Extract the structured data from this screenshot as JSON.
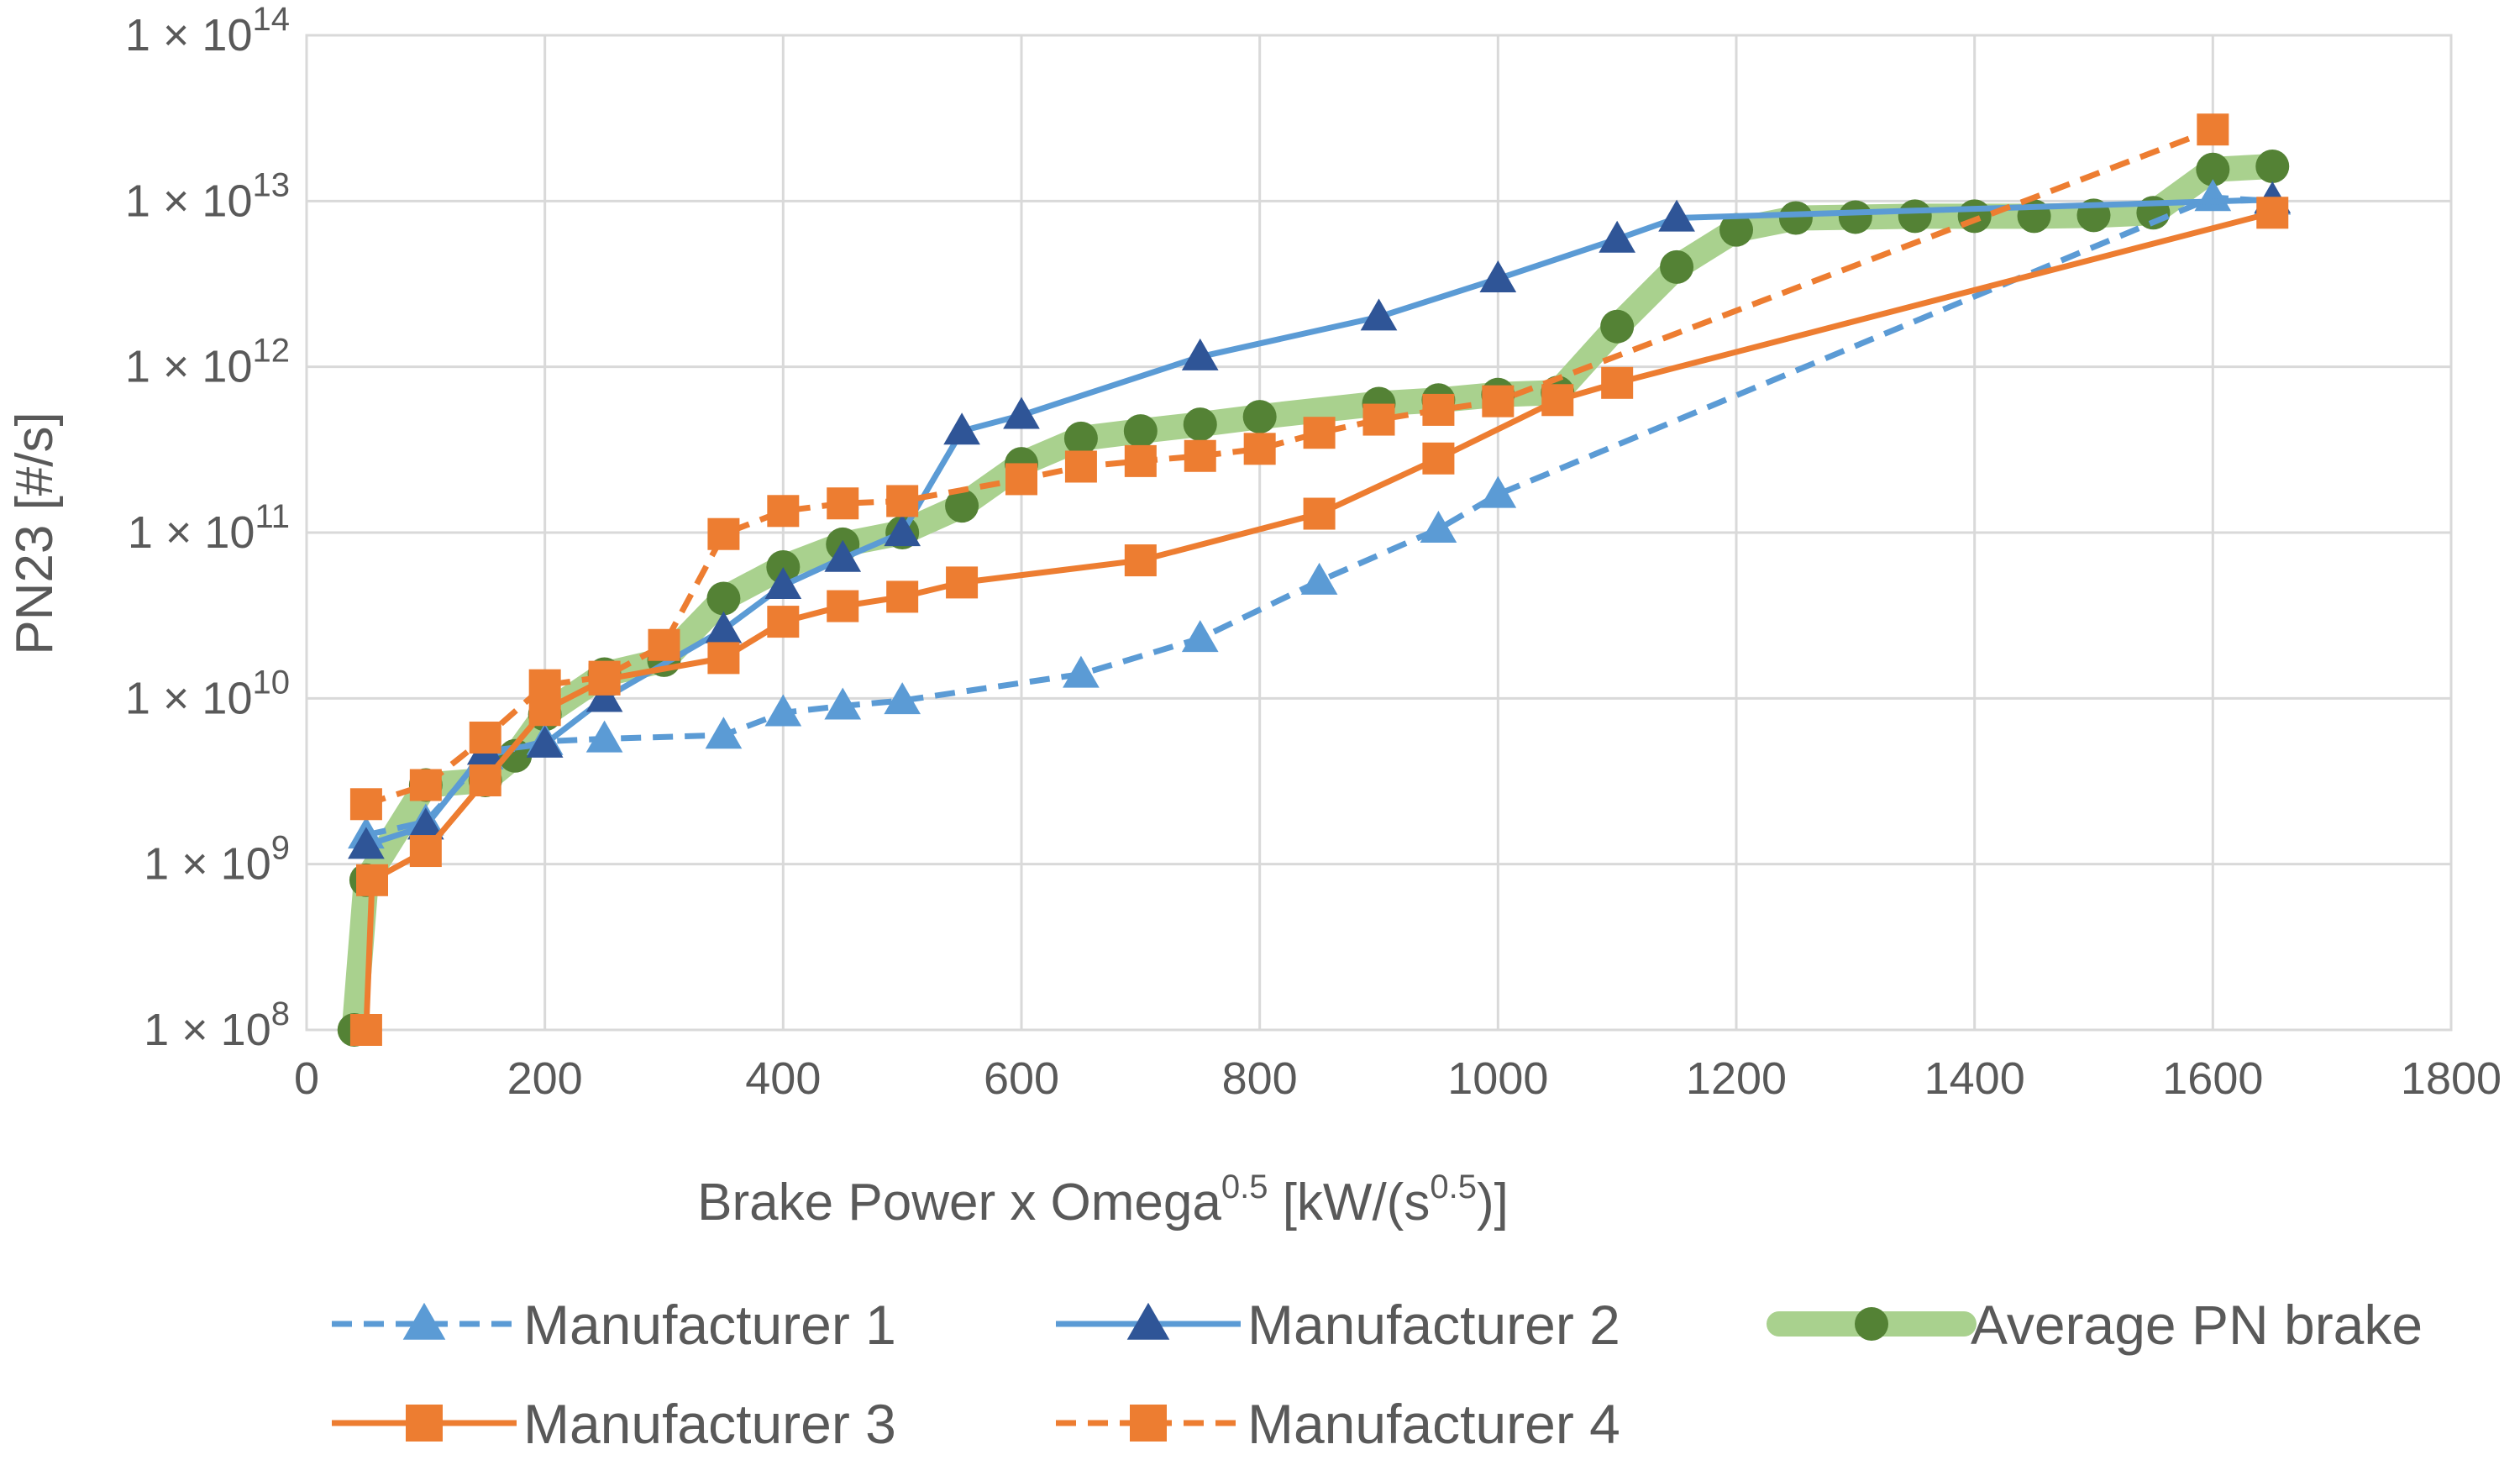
{
  "chart_data": {
    "type": "line",
    "title": "",
    "xlabel": {
      "base": "Brake Power x Omega",
      "sup": "0.5",
      "tail1": " [kW/(s",
      "sup2": "0.5",
      "tail2": ")]"
    },
    "ylabel": "PN23 [#/s]",
    "xlim": [
      0,
      1800
    ],
    "ylim_log10": [
      8,
      14
    ],
    "y_scale": "log",
    "grid": true,
    "legend_position": "bottom",
    "x_ticks": [
      "0",
      "200",
      "400",
      "600",
      "800",
      "1000",
      "1200",
      "1400",
      "1600",
      "1800"
    ],
    "y_ticks": [
      {
        "mantissa": "1 × 10",
        "exp": "8"
      },
      {
        "mantissa": "1 × 10",
        "exp": "9"
      },
      {
        "mantissa": "1 × 10",
        "exp": "10"
      },
      {
        "mantissa": "1 × 10",
        "exp": "11"
      },
      {
        "mantissa": "1 × 10",
        "exp": "12"
      },
      {
        "mantissa": "1 × 10",
        "exp": "13"
      },
      {
        "mantissa": "1 × 10",
        "exp": "14"
      }
    ],
    "series": [
      {
        "name": "Average PN brake",
        "color": "#548235",
        "band_color": "#a9d18e",
        "dash": "solid",
        "marker": "circle",
        "x": [
          40,
          50,
          100,
          150,
          175,
          200,
          250,
          300,
          350,
          400,
          450,
          500,
          550,
          600,
          650,
          700,
          750,
          800,
          900,
          950,
          1000,
          1050,
          1100,
          1150,
          1200,
          1250,
          1300,
          1350,
          1400,
          1450,
          1500,
          1550,
          1600,
          1650
        ],
        "y": [
          100000000.0,
          800000000.0,
          3000000000.0,
          3200000000.0,
          4500000000.0,
          8000000000.0,
          14000000000.0,
          17000000000.0,
          40000000000.0,
          62000000000.0,
          85000000000.0,
          100000000000.0,
          145000000000.0,
          260000000000.0,
          370000000000.0,
          410000000000.0,
          450000000000.0,
          500000000000.0,
          600000000000.0,
          630000000000.0,
          680000000000.0,
          700000000000.0,
          1750000000000.0,
          4000000000000.0,
          6700000000000.0,
          7900000000000.0,
          8000000000000.0,
          8100000000000.0,
          8100000000000.0,
          8100000000000.0,
          8200000000000.0,
          8500000000000.0,
          15500000000000.0,
          16200000000000.0
        ]
      },
      {
        "name": "Manufacturer 1",
        "color": "#5b9bd5",
        "dash": "dashed",
        "marker": "triangle",
        "x": [
          50,
          100,
          150,
          200,
          250,
          350,
          400,
          450,
          500,
          650,
          750,
          850,
          950,
          1000,
          1600,
          1650
        ],
        "y": [
          1500000000.0,
          1800000000.0,
          4500000000.0,
          5500000000.0,
          5700000000.0,
          6000000000.0,
          8200000000.0,
          9000000000.0,
          9700000000.0,
          14000000000.0,
          23000000000.0,
          51000000000.0,
          105000000000.0,
          170000000000.0,
          10500000000000.0,
          10000000000000.0
        ]
      },
      {
        "name": "Manufacturer 2",
        "color": "#2f5597",
        "line_color": "#5b9bd5",
        "dash": "solid",
        "marker": "triangle",
        "x": [
          50,
          100,
          150,
          200,
          250,
          350,
          400,
          450,
          500,
          550,
          600,
          750,
          900,
          1000,
          1100,
          1150,
          1650
        ],
        "y": [
          1300000000.0,
          1700000000.0,
          4800000000.0,
          5300000000.0,
          10000000000.0,
          26000000000.0,
          48000000000.0,
          70000000000.0,
          100000000000.0,
          410000000000.0,
          510000000000.0,
          1150000000000.0,
          2000000000000.0,
          3400000000000.0,
          5900000000000.0,
          7900000000000.0,
          10200000000000.0
        ]
      },
      {
        "name": "Manufacturer 3",
        "color": "#ed7d31",
        "dash": "solid",
        "marker": "square",
        "x": [
          50,
          55,
          100,
          150,
          200,
          250,
          350,
          400,
          450,
          500,
          550,
          700,
          850,
          950,
          1050,
          1100,
          1650
        ],
        "y": [
          100000000.0,
          800000000.0,
          1200000000.0,
          3200000000.0,
          8500000000.0,
          13000000000.0,
          17500000000.0,
          29000000000.0,
          36000000000.0,
          41000000000.0,
          50000000000.0,
          68000000000.0,
          130000000000.0,
          280000000000.0,
          630000000000.0,
          800000000000.0,
          8500000000000.0
        ]
      },
      {
        "name": "Manufacturer 4",
        "color": "#ed7d31",
        "dash": "dashed",
        "marker": "square",
        "x": [
          50,
          100,
          150,
          200,
          250,
          300,
          350,
          400,
          450,
          500,
          600,
          650,
          700,
          750,
          800,
          850,
          900,
          950,
          1000,
          1600
        ],
        "y": [
          2300000000.0,
          3000000000.0,
          5800000000.0,
          12000000000.0,
          13500000000.0,
          21000000000.0,
          98000000000.0,
          135000000000.0,
          150000000000.0,
          155000000000.0,
          210000000000.0,
          250000000000.0,
          270000000000.0,
          290000000000.0,
          320000000000.0,
          400000000000.0,
          480000000000.0,
          550000000000.0,
          620000000000.0,
          27000000000000.0
        ]
      }
    ],
    "legend": [
      {
        "series": "Manufacturer 1"
      },
      {
        "series": "Manufacturer 2"
      },
      {
        "series": "Average PN brake"
      },
      {
        "series": "Manufacturer 3"
      },
      {
        "series": "Manufacturer 4"
      }
    ]
  }
}
